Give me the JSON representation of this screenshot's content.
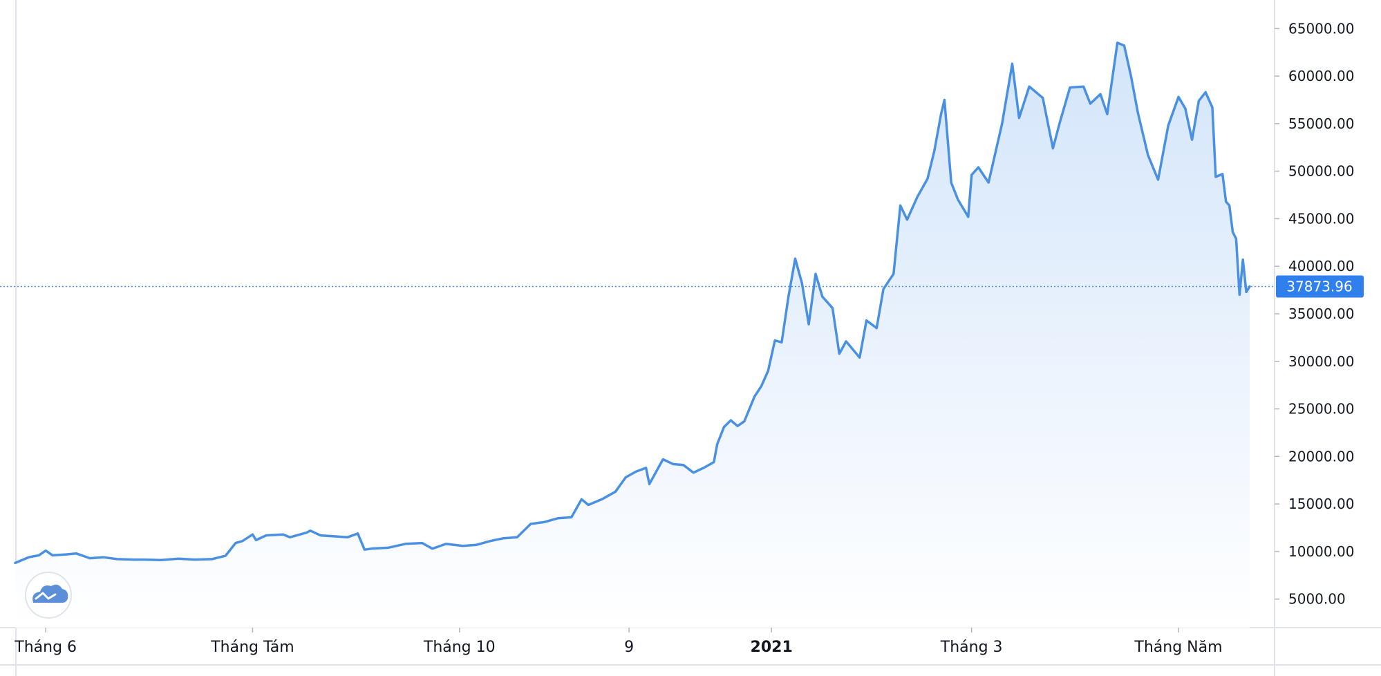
{
  "chart_data": {
    "type": "area",
    "title": "",
    "xlabel": "",
    "ylabel": "",
    "ylim": [
      2000,
      68000
    ],
    "y_ticks": [
      "5000.00",
      "10000.00",
      "15000.00",
      "20000.00",
      "25000.00",
      "30000.00",
      "35000.00",
      "40000.00",
      "45000.00",
      "50000.00",
      "55000.00",
      "60000.00",
      "65000.00"
    ],
    "x_ticks": [
      {
        "label": "Tháng 6",
        "bold": false
      },
      {
        "label": "Tháng Tám",
        "bold": false
      },
      {
        "label": "Tháng 10",
        "bold": false
      },
      {
        "label": "9",
        "bold": false
      },
      {
        "label": "2021",
        "bold": true
      },
      {
        "label": "Tháng 3",
        "bold": false
      },
      {
        "label": "Tháng Năm",
        "bold": false
      }
    ],
    "last_price_label": "37873.96",
    "last_price_value": 37873.96,
    "colors": {
      "line": "#4a90e2",
      "fill_top": "#d3e5fa",
      "fill_bottom": "#ffffff",
      "price_label_bg": "#2f80ed",
      "grid_border": "#e0e3eb"
    },
    "series": [
      {
        "points": [
          [
            "2020-05-23",
            8800
          ],
          [
            "2020-05-27",
            9400
          ],
          [
            "2020-05-30",
            9600
          ],
          [
            "2020-06-01",
            10100
          ],
          [
            "2020-06-03",
            9600
          ],
          [
            "2020-06-07",
            9700
          ],
          [
            "2020-06-10",
            9800
          ],
          [
            "2020-06-14",
            9300
          ],
          [
            "2020-06-18",
            9400
          ],
          [
            "2020-06-22",
            9200
          ],
          [
            "2020-06-27",
            9150
          ],
          [
            "2020-06-30",
            9150
          ],
          [
            "2020-07-05",
            9100
          ],
          [
            "2020-07-10",
            9250
          ],
          [
            "2020-07-15",
            9150
          ],
          [
            "2020-07-20",
            9200
          ],
          [
            "2020-07-24",
            9550
          ],
          [
            "2020-07-27",
            10900
          ],
          [
            "2020-07-29",
            11100
          ],
          [
            "2020-08-01",
            11800
          ],
          [
            "2020-08-02",
            11200
          ],
          [
            "2020-08-05",
            11700
          ],
          [
            "2020-08-10",
            11800
          ],
          [
            "2020-08-12",
            11500
          ],
          [
            "2020-08-17",
            12000
          ],
          [
            "2020-08-18",
            12200
          ],
          [
            "2020-08-21",
            11700
          ],
          [
            "2020-08-25",
            11600
          ],
          [
            "2020-08-29",
            11500
          ],
          [
            "2020-09-01",
            11900
          ],
          [
            "2020-09-03",
            10200
          ],
          [
            "2020-09-05",
            10300
          ],
          [
            "2020-09-10",
            10400
          ],
          [
            "2020-09-15",
            10800
          ],
          [
            "2020-09-20",
            10900
          ],
          [
            "2020-09-23",
            10300
          ],
          [
            "2020-09-27",
            10800
          ],
          [
            "2020-10-02",
            10600
          ],
          [
            "2020-10-06",
            10700
          ],
          [
            "2020-10-10",
            11100
          ],
          [
            "2020-10-14",
            11400
          ],
          [
            "2020-10-18",
            11500
          ],
          [
            "2020-10-22",
            12900
          ],
          [
            "2020-10-26",
            13100
          ],
          [
            "2020-10-30",
            13500
          ],
          [
            "2020-11-03",
            13600
          ],
          [
            "2020-11-06",
            15500
          ],
          [
            "2020-11-08",
            14900
          ],
          [
            "2020-11-12",
            15500
          ],
          [
            "2020-11-16",
            16300
          ],
          [
            "2020-11-19",
            17800
          ],
          [
            "2020-11-22",
            18400
          ],
          [
            "2020-11-25",
            18800
          ],
          [
            "2020-11-26",
            17100
          ],
          [
            "2020-11-30",
            19700
          ],
          [
            "2020-12-03",
            19200
          ],
          [
            "2020-12-06",
            19100
          ],
          [
            "2020-12-09",
            18300
          ],
          [
            "2020-12-12",
            18800
          ],
          [
            "2020-12-15",
            19400
          ],
          [
            "2020-12-16",
            21300
          ],
          [
            "2020-12-18",
            23100
          ],
          [
            "2020-12-20",
            23800
          ],
          [
            "2020-12-22",
            23200
          ],
          [
            "2020-12-24",
            23700
          ],
          [
            "2020-12-27",
            26300
          ],
          [
            "2020-12-29",
            27400
          ],
          [
            "2020-12-31",
            29000
          ],
          [
            "2021-01-02",
            32200
          ],
          [
            "2021-01-04",
            32000
          ],
          [
            "2021-01-06",
            36800
          ],
          [
            "2021-01-08",
            40800
          ],
          [
            "2021-01-10",
            38200
          ],
          [
            "2021-01-12",
            33900
          ],
          [
            "2021-01-14",
            39200
          ],
          [
            "2021-01-16",
            36800
          ],
          [
            "2021-01-19",
            35600
          ],
          [
            "2021-01-21",
            30800
          ],
          [
            "2021-01-23",
            32100
          ],
          [
            "2021-01-27",
            30400
          ],
          [
            "2021-01-29",
            34300
          ],
          [
            "2021-02-01",
            33500
          ],
          [
            "2021-02-03",
            37600
          ],
          [
            "2021-02-06",
            39200
          ],
          [
            "2021-02-08",
            46400
          ],
          [
            "2021-02-10",
            44900
          ],
          [
            "2021-02-13",
            47300
          ],
          [
            "2021-02-16",
            49200
          ],
          [
            "2021-02-18",
            52100
          ],
          [
            "2021-02-20",
            56000
          ],
          [
            "2021-02-21",
            57500
          ],
          [
            "2021-02-23",
            48800
          ],
          [
            "2021-02-25",
            47000
          ],
          [
            "2021-02-28",
            45200
          ],
          [
            "2021-03-01",
            49600
          ],
          [
            "2021-03-03",
            50400
          ],
          [
            "2021-03-06",
            48800
          ],
          [
            "2021-03-10",
            55000
          ],
          [
            "2021-03-13",
            61300
          ],
          [
            "2021-03-15",
            55600
          ],
          [
            "2021-03-18",
            58900
          ],
          [
            "2021-03-22",
            57700
          ],
          [
            "2021-03-25",
            52400
          ],
          [
            "2021-03-27",
            55100
          ],
          [
            "2021-03-30",
            58800
          ],
          [
            "2021-04-03",
            58900
          ],
          [
            "2021-04-05",
            57100
          ],
          [
            "2021-04-08",
            58100
          ],
          [
            "2021-04-10",
            56000
          ],
          [
            "2021-04-13",
            63500
          ],
          [
            "2021-04-15",
            63200
          ],
          [
            "2021-04-17",
            60000
          ],
          [
            "2021-04-19",
            56200
          ],
          [
            "2021-04-22",
            51700
          ],
          [
            "2021-04-25",
            49100
          ],
          [
            "2021-04-28",
            54800
          ],
          [
            "2021-05-01",
            57800
          ],
          [
            "2021-05-03",
            56600
          ],
          [
            "2021-05-05",
            53300
          ],
          [
            "2021-05-07",
            57400
          ],
          [
            "2021-05-09",
            58300
          ],
          [
            "2021-05-11",
            56700
          ],
          [
            "2021-05-12",
            49400
          ],
          [
            "2021-05-14",
            49700
          ],
          [
            "2021-05-15",
            46800
          ],
          [
            "2021-05-16",
            46400
          ],
          [
            "2021-05-17",
            43600
          ],
          [
            "2021-05-18",
            42900
          ],
          [
            "2021-05-19",
            37000
          ],
          [
            "2021-05-20",
            40700
          ],
          [
            "2021-05-21",
            37300
          ],
          [
            "2021-05-22",
            37873.96
          ]
        ]
      }
    ]
  },
  "ui": {
    "logo_icon": "tradingview-cloud-icon"
  }
}
